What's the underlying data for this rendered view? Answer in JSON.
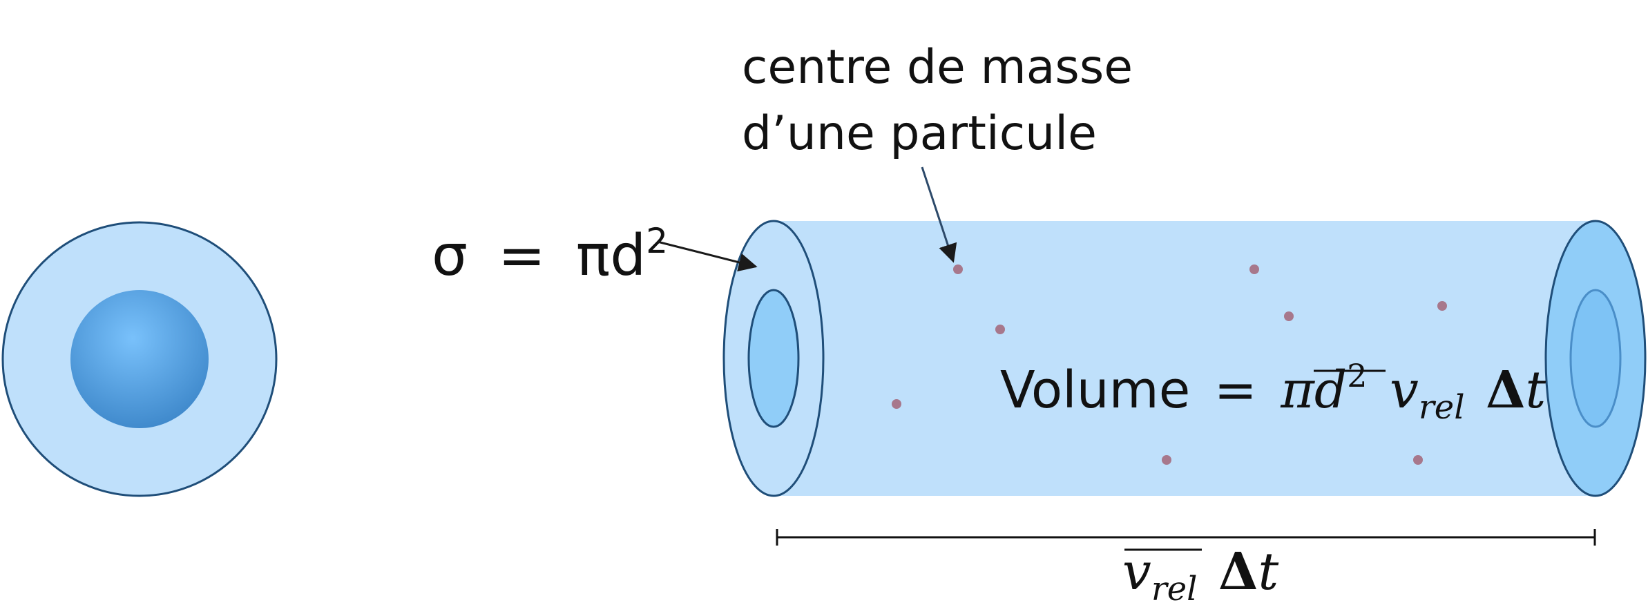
{
  "labels": {
    "cross_section": {
      "lhs": "σ",
      "eq": "=",
      "pi": "π",
      "d": "d",
      "exp": "2"
    },
    "particle_note": {
      "line1": "centre de masse",
      "line2": "d’une particule"
    },
    "volume": {
      "word": "Volume",
      "eq": "=",
      "pi": "π",
      "d": "d",
      "exp": "2",
      "v": "v",
      "sub": "rel",
      "delta": "Δ",
      "t": "t"
    },
    "length": {
      "v": "v",
      "sub": "rel",
      "delta": "Δ",
      "t": "t"
    }
  },
  "colors": {
    "outline": "#1f4e79",
    "light_blue": "#bfe0fb",
    "mid_blue": "#90cdf8",
    "sphere_blue": "#4a9fe3",
    "particle": "#a7788c",
    "ink": "#111111"
  }
}
